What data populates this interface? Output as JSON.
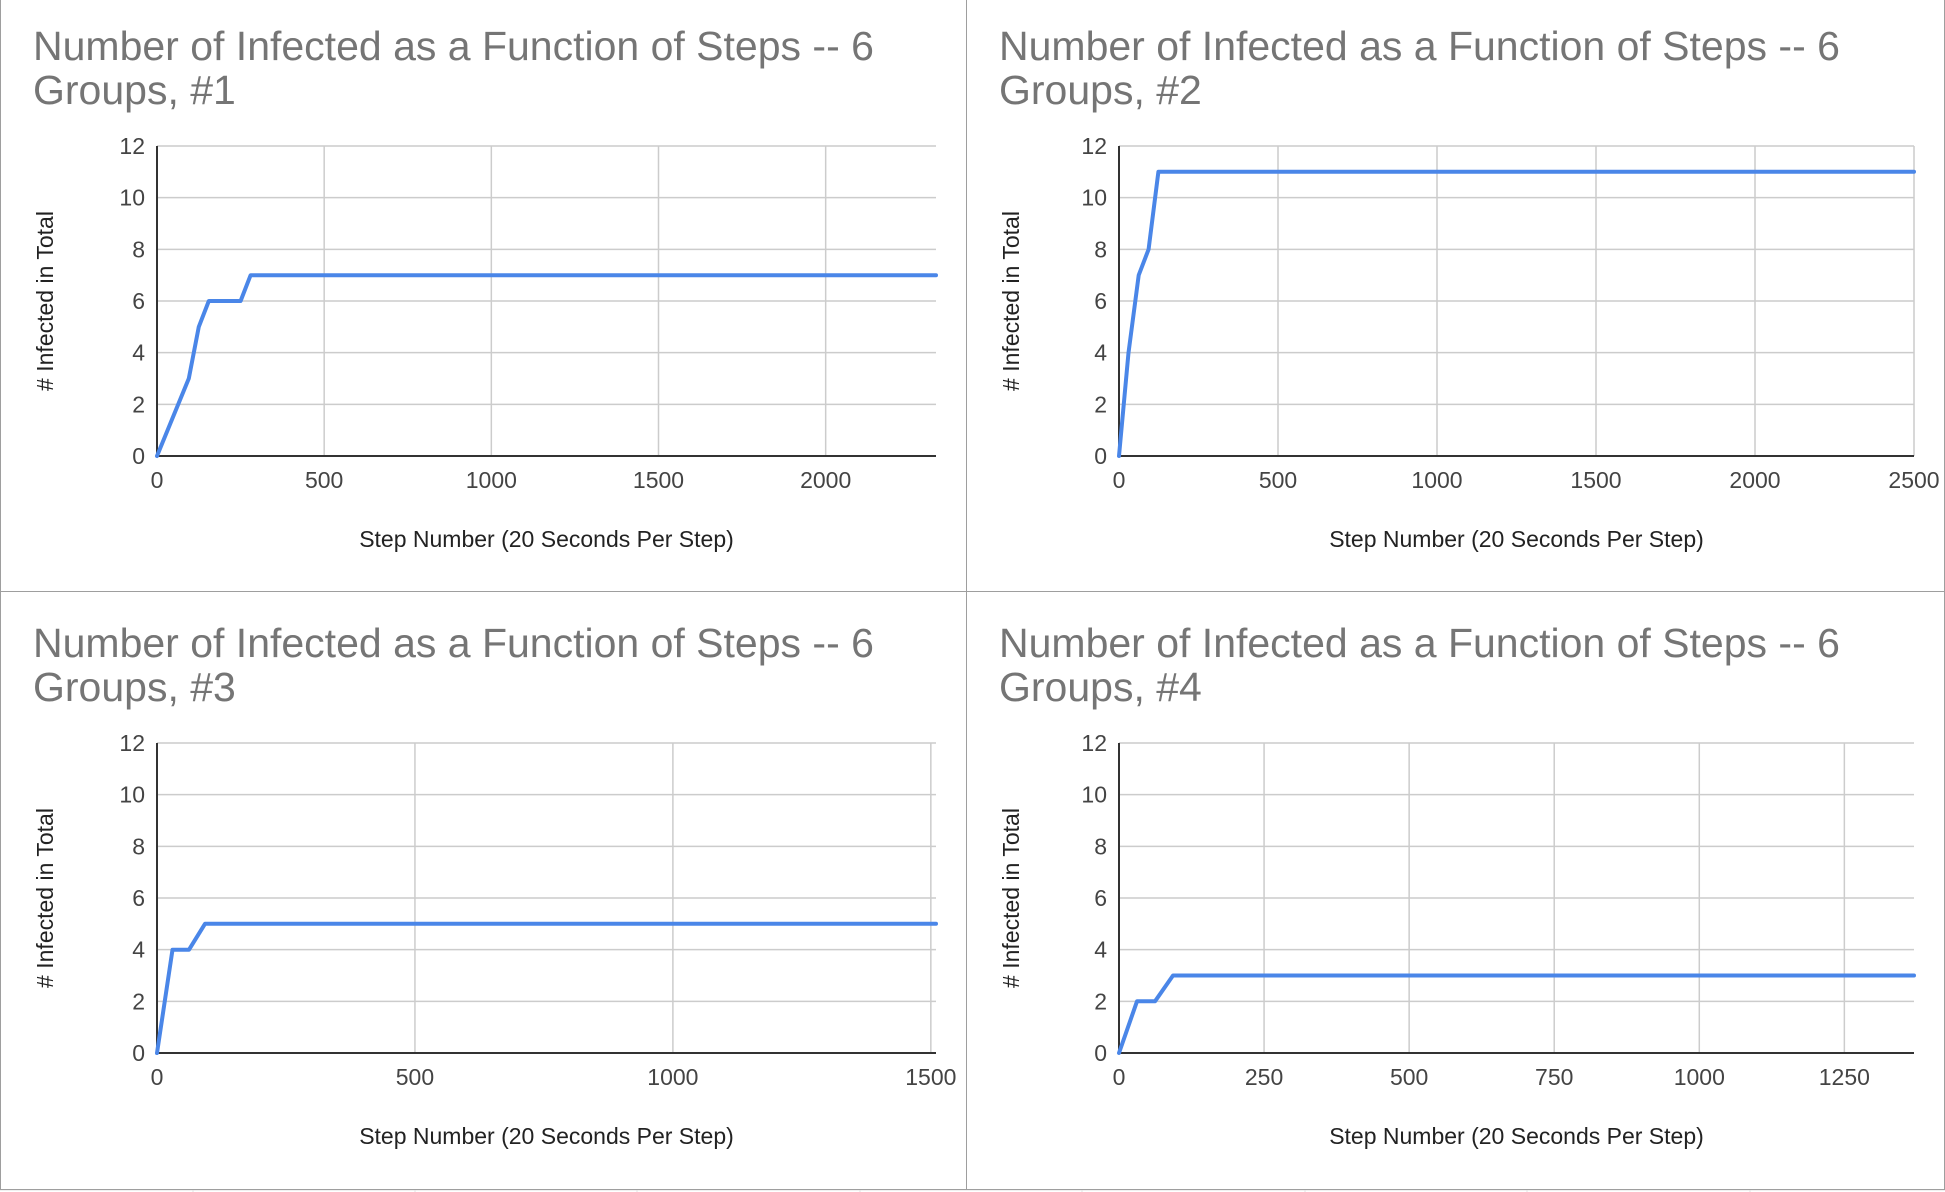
{
  "colors": {
    "line": "#4a86e8",
    "grid": "#cccccc",
    "axis": "#333333",
    "title": "#757575",
    "border": "#9e9e9e"
  },
  "chart_data": [
    {
      "type": "line",
      "title_lines": [
        "Number of Infected as a Function of Steps -- 6",
        "Groups, #1"
      ],
      "xlabel": "Step Number (20 Seconds Per Step)",
      "ylabel": "# Infected in Total",
      "xlim": [
        0,
        2330
      ],
      "ylim": [
        0,
        12
      ],
      "xticks": [
        0,
        500,
        1000,
        1500,
        2000
      ],
      "yticks": [
        0,
        2,
        4,
        6,
        8,
        10,
        12
      ],
      "grid": true,
      "legend": "none",
      "x": [
        0,
        95,
        125,
        155,
        250,
        280,
        2330
      ],
      "y": [
        0,
        3,
        5,
        6,
        6,
        7,
        7
      ]
    },
    {
      "type": "line",
      "title_lines": [
        "Number of Infected as a Function of Steps -- 6",
        "Groups, #2"
      ],
      "xlabel": "Step Number (20 Seconds Per Step)",
      "ylabel": "# Infected in Total",
      "xlim": [
        0,
        2500
      ],
      "ylim": [
        0,
        12
      ],
      "xticks": [
        0,
        500,
        1000,
        1500,
        2000,
        2500
      ],
      "yticks": [
        0,
        2,
        4,
        6,
        8,
        10,
        12
      ],
      "grid": true,
      "legend": "none",
      "x": [
        0,
        30,
        62,
        93,
        124,
        2500
      ],
      "y": [
        0,
        4,
        7,
        8,
        11,
        11
      ]
    },
    {
      "type": "line",
      "title_lines": [
        "Number of Infected as a Function of Steps -- 6",
        "Groups, #3"
      ],
      "xlabel": "Step Number (20 Seconds Per Step)",
      "ylabel": "# Infected in Total",
      "xlim": [
        0,
        1510
      ],
      "ylim": [
        0,
        12
      ],
      "xticks": [
        0,
        500,
        1000,
        1500
      ],
      "yticks": [
        0,
        2,
        4,
        6,
        8,
        10,
        12
      ],
      "grid": true,
      "legend": "none",
      "x": [
        0,
        30,
        62,
        93,
        1510
      ],
      "y": [
        0,
        4,
        4,
        5,
        5
      ]
    },
    {
      "type": "line",
      "title_lines": [
        "Number of Infected as a Function of Steps -- 6",
        "Groups, #4"
      ],
      "xlabel": "Step Number (20 Seconds Per Step)",
      "ylabel": "# Infected in Total",
      "xlim": [
        0,
        1370
      ],
      "ylim": [
        0,
        12
      ],
      "xticks": [
        0,
        250,
        500,
        750,
        1000,
        1250
      ],
      "yticks": [
        0,
        2,
        4,
        6,
        8,
        10,
        12
      ],
      "grid": true,
      "legend": "none",
      "x": [
        0,
        31,
        62,
        93,
        1370
      ],
      "y": [
        0,
        2,
        2,
        3,
        3
      ]
    }
  ]
}
